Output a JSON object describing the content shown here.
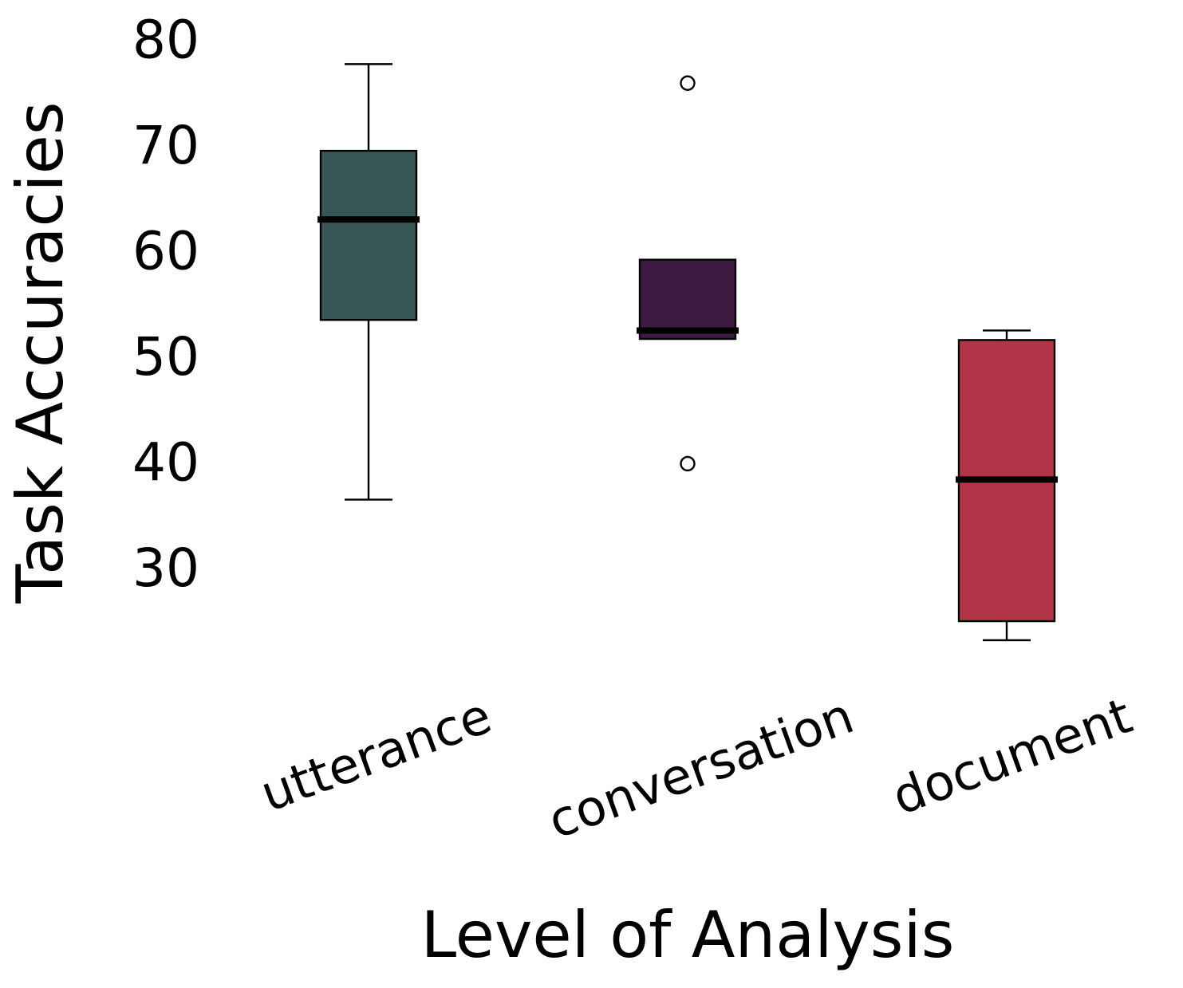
{
  "chart_data": {
    "type": "box",
    "title": "",
    "xlabel": "Level of Analysis",
    "ylabel": "Task Accuracies",
    "ylim": [
      20.4,
      81.5
    ],
    "yticks": [
      30,
      40,
      50,
      60,
      70,
      80
    ],
    "grid": false,
    "categories": [
      "utterance",
      "conversation",
      "document"
    ],
    "boxes": [
      {
        "name": "utterance",
        "color": "#375756",
        "whisker_low": 36.5,
        "q1": 53.5,
        "median": 63.0,
        "q3": 69.5,
        "whisker_high": 77.7,
        "outliers": []
      },
      {
        "name": "conversation",
        "color": "#3c1a42",
        "whisker_low": 51.7,
        "q1": 51.7,
        "median": 52.5,
        "q3": 59.2,
        "whisker_high": 59.2,
        "outliers": [
          75.9,
          39.9
        ]
      },
      {
        "name": "document",
        "color": "#b23547",
        "whisker_low": 23.2,
        "q1": 25.0,
        "median": 38.4,
        "q3": 51.6,
        "whisker_high": 52.5,
        "outliers": []
      }
    ]
  }
}
